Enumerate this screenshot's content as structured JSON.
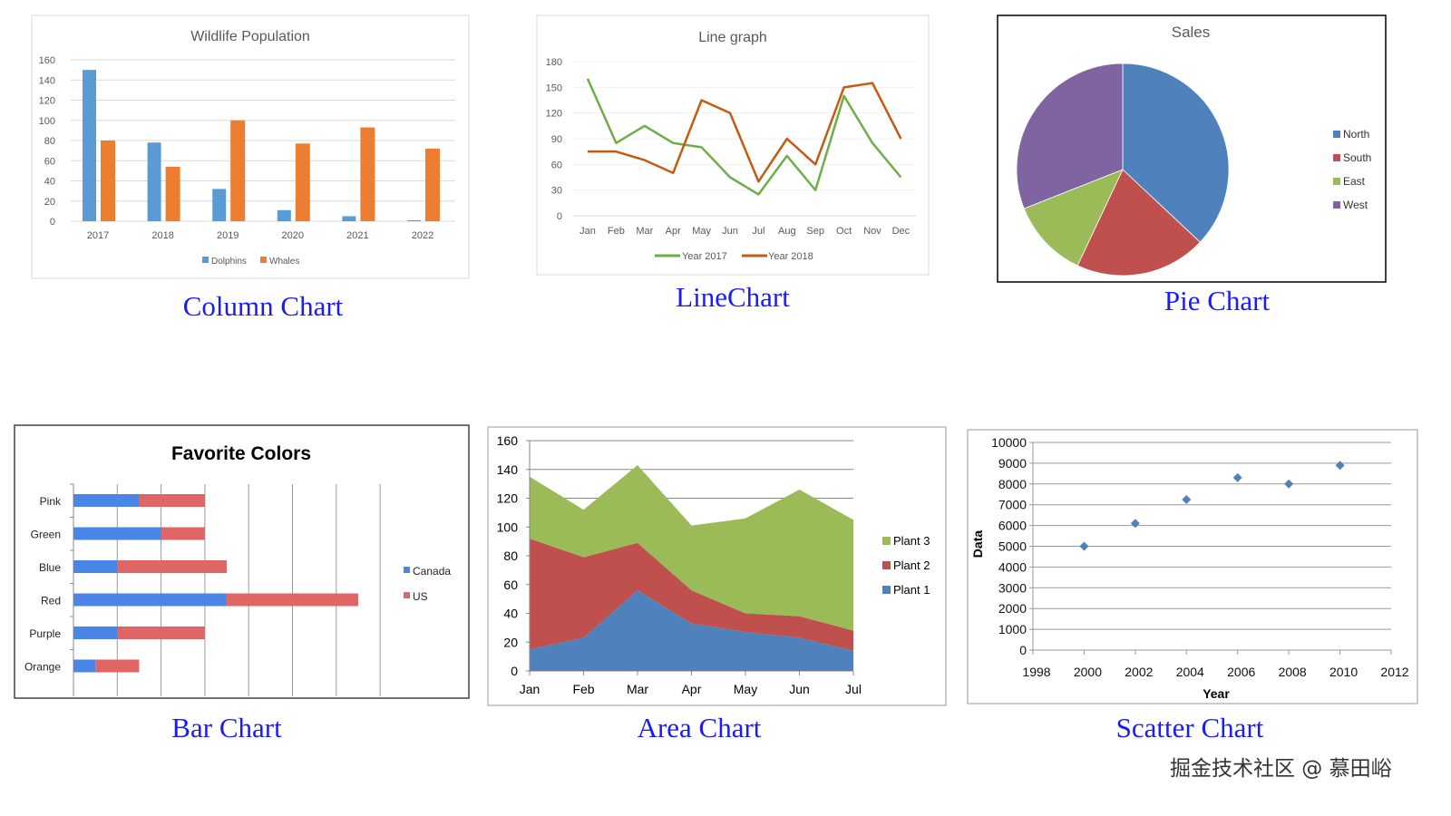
{
  "charts": {
    "chart_data": [
      {
        "type": "bar",
        "title": "Wildlife Population",
        "caption": "Column Chart",
        "categories": [
          "2017",
          "2018",
          "2019",
          "2020",
          "2021",
          "2022"
        ],
        "series": [
          {
            "name": "Dolphins",
            "values": [
              150,
              78,
              32,
              11,
              5,
              1
            ],
            "color": "#5b9bd5"
          },
          {
            "name": "Whales",
            "values": [
              80,
              54,
              100,
              77,
              93,
              72
            ],
            "color": "#ed7d31"
          }
        ],
        "yticks": [
          0,
          20,
          40,
          60,
          80,
          100,
          120,
          140,
          160
        ],
        "ylim": [
          0,
          160
        ],
        "xlabel": "",
        "ylabel": "",
        "grid": true,
        "legend": "bottom"
      },
      {
        "type": "line",
        "title": "Line graph",
        "caption": "LineChart",
        "categories": [
          "Jan",
          "Feb",
          "Mar",
          "Apr",
          "May",
          "Jun",
          "Jul",
          "Aug",
          "Sep",
          "Oct",
          "Nov",
          "Dec"
        ],
        "series": [
          {
            "name": "Year 2017",
            "values": [
              160,
              85,
              105,
              85,
              80,
              45,
              25,
              70,
              30,
              140,
              85,
              45
            ],
            "color": "#70ad47"
          },
          {
            "name": "Year 2018",
            "values": [
              75,
              75,
              65,
              50,
              135,
              120,
              40,
              90,
              60,
              150,
              155,
              90
            ],
            "color": "#c55a11"
          }
        ],
        "yticks": [
          0,
          30,
          60,
          90,
          120,
          150,
          180
        ],
        "ylim": [
          0,
          180
        ],
        "grid": true,
        "legend": "bottom"
      },
      {
        "type": "pie",
        "title": "Sales",
        "caption": "Pie Chart",
        "labels": [
          "North",
          "South",
          "East",
          "West"
        ],
        "values": [
          37,
          20,
          12,
          31
        ],
        "colors": [
          "#4f81bd",
          "#c0504d",
          "#9bbb59",
          "#8064a2"
        ],
        "legend": "right"
      },
      {
        "type": "bar",
        "orientation": "horizontal",
        "stacked": true,
        "title": "Favorite Colors",
        "caption": "Bar Chart",
        "categories": [
          "Pink",
          "Green",
          "Blue",
          "Red",
          "Purple",
          "Orange"
        ],
        "series": [
          {
            "name": "Canada",
            "values": [
              1.5,
              2,
              1,
              3.5,
              1,
              0.5
            ],
            "color": "#4a86e8"
          },
          {
            "name": "US",
            "values": [
              1.5,
              1,
              2.5,
              3,
              2,
              1
            ],
            "color": "#e06666"
          }
        ],
        "xlim": [
          0,
          7
        ],
        "grid": true,
        "legend": "right"
      },
      {
        "type": "area",
        "stacked": true,
        "title": "",
        "caption": "Area Chart",
        "categories": [
          "Jan",
          "Feb",
          "Mar",
          "Apr",
          "May",
          "Jun",
          "Jul"
        ],
        "series": [
          {
            "name": "Plant 1",
            "values": [
              15,
              23,
              56,
              33,
              27,
              23,
              14
            ],
            "color": "#4f81bd"
          },
          {
            "name": "Plant 2",
            "values": [
              77,
              56,
              33,
              23,
              13,
              15,
              14
            ],
            "color": "#c0504d"
          },
          {
            "name": "Plant 3",
            "values": [
              43,
              33,
              54,
              45,
              66,
              88,
              77
            ],
            "color": "#9bbb59"
          }
        ],
        "yticks": [
          0,
          20,
          40,
          60,
          80,
          100,
          120,
          140,
          160
        ],
        "ylim": [
          0,
          160
        ],
        "grid": true,
        "legend": "right"
      },
      {
        "type": "scatter",
        "title": "",
        "caption": "Scatter Chart",
        "x": [
          2000,
          2002,
          2004,
          2006,
          2008,
          2010
        ],
        "y": [
          5000,
          6100,
          7250,
          8300,
          8000,
          8900
        ],
        "color": "#4f81bd",
        "xlabel": "Year",
        "ylabel": "Data",
        "xticks": [
          1998,
          2000,
          2002,
          2004,
          2006,
          2008,
          2010,
          2012
        ],
        "yticks": [
          0,
          1000,
          2000,
          3000,
          4000,
          5000,
          6000,
          7000,
          8000,
          9000,
          10000
        ],
        "xlim": [
          1998,
          2012
        ],
        "ylim": [
          0,
          10000
        ],
        "grid": true
      }
    ]
  },
  "watermark": "掘金技术社区 @ 慕田峪"
}
